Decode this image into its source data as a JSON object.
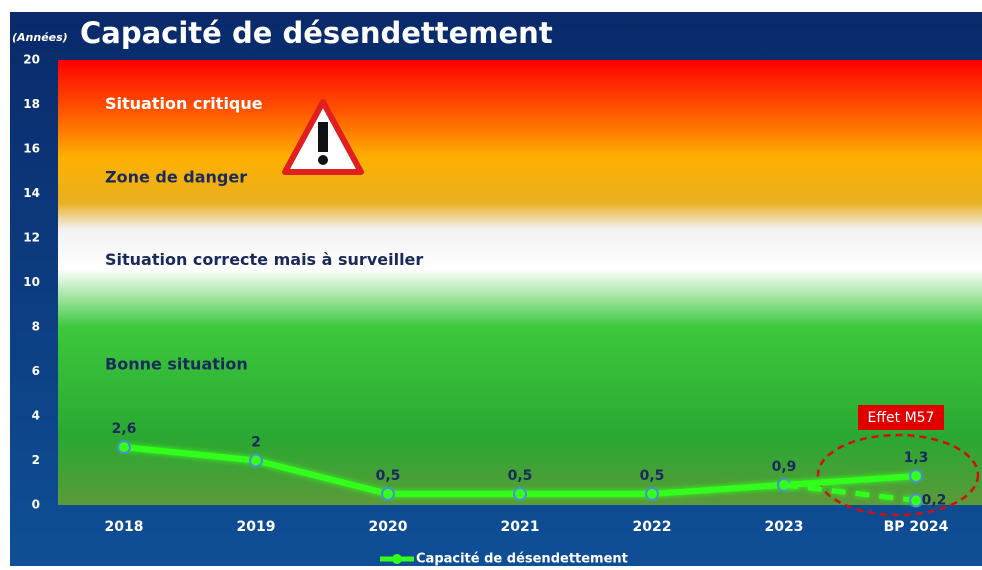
{
  "chart_data": {
    "type": "line",
    "title": "Capacité de désendettement",
    "y_axis_label": "(Années)",
    "categories": [
      "2018",
      "2019",
      "2020",
      "2021",
      "2022",
      "2023",
      "BP 2024"
    ],
    "series": [
      {
        "name": "Capacité de désendettement",
        "color": "#33ff1a",
        "values": [
          2.6,
          2,
          0.5,
          0.5,
          0.5,
          0.9,
          1.3
        ],
        "value_labels": [
          "2,6",
          "2",
          "0,5",
          "0,5",
          "0,5",
          "0,9",
          "1,3"
        ]
      },
      {
        "color": "#33ff1a",
        "dashed": true,
        "values": [
          null,
          null,
          null,
          null,
          null,
          0.9,
          0.2
        ],
        "value_labels": [
          null,
          null,
          null,
          null,
          null,
          null,
          "0,2"
        ]
      }
    ],
    "ylim": [
      0,
      20
    ],
    "yticks": [
      0,
      2,
      4,
      6,
      8,
      10,
      12,
      14,
      16,
      18,
      20
    ],
    "zones": [
      {
        "label": "Situation critique",
        "y": 18,
        "color": "#ffffff"
      },
      {
        "label": "Zone de danger",
        "y": 14.7,
        "color": "#1a2a5a"
      },
      {
        "label": "Situation correcte mais à surveiller",
        "y": 11,
        "color": "#1a2a5a"
      },
      {
        "label": "Bonne situation",
        "y": 6.3,
        "color": "#1a2a5a"
      }
    ],
    "annotation": "Effet M57",
    "legend": "bottom"
  }
}
